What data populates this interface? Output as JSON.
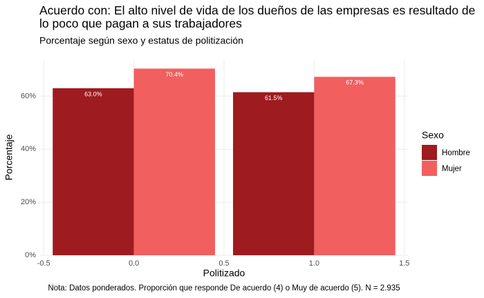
{
  "chart_data": {
    "type": "bar",
    "title": "Acuerdo con: El alto nivel de vida de los dueños de las empresas es resultado de lo poco que pagan a sus trabajadores",
    "subtitle": "Porcentaje según sexo y estatus de politización",
    "x_label": "Politizado",
    "y_label": "Porcentaje",
    "caption": "Nota: Datos ponderados. Proporción que responde De acuerdo (4) o Muy de acuerdo (5). N = 2.935",
    "x": [
      0,
      1
    ],
    "series": [
      {
        "name": "Hombre",
        "color": "#9e1b1f",
        "values": [
          63.0,
          61.5
        ],
        "value_labels": [
          "63.0%",
          "61.5%"
        ]
      },
      {
        "name": "Mujer",
        "color": "#f15f5f",
        "values": [
          70.4,
          67.3
        ],
        "value_labels": [
          "70.4%",
          "67.3%"
        ]
      }
    ],
    "legend_title": "Sexo",
    "legend_position": "right",
    "xlim": [
      -0.52,
      1.52
    ],
    "xticks": [
      -0.5,
      {
        "value": 0,
        "label": "0.0"
      },
      0.5,
      {
        "value": 1,
        "label": "1.0"
      },
      1.5
    ],
    "ylim": [
      0,
      73.9
    ],
    "yticks": [
      {
        "value": 0,
        "label": "0%"
      },
      {
        "value": 20,
        "label": "20%"
      },
      {
        "value": 40,
        "label": "40%"
      },
      {
        "value": 60,
        "label": "60%"
      }
    ],
    "grid": true
  }
}
